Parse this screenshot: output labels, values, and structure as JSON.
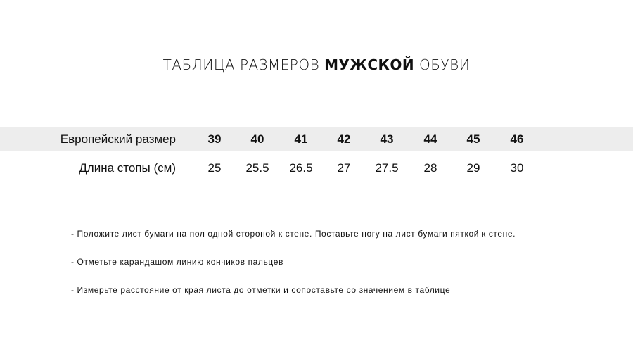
{
  "title": {
    "prefix": "ТАБЛИЦА РАЗМЕРОВ",
    "bold": "МУЖСКОЙ",
    "suffix": "ОБУВИ"
  },
  "table": {
    "rows": [
      {
        "label": "Европейский размер",
        "values": [
          "39",
          "40",
          "41",
          "42",
          "43",
          "44",
          "45",
          "46"
        ]
      },
      {
        "label": "Длина стопы (см)",
        "values": [
          "25",
          "25.5",
          "26.5",
          "27",
          "27.5",
          "28",
          "29",
          "30"
        ]
      }
    ],
    "band_color": "#ededed"
  },
  "instructions": [
    "- Положите лист бумаги на пол одной стороной к стене. Поставьте ногу на лист бумаги пяткой к стене.",
    "- Отметьте карандашом линию кончиков пальцев",
    "- Измерьте расстояние от края листа до отметки и сопоставьте со значением в таблице"
  ]
}
